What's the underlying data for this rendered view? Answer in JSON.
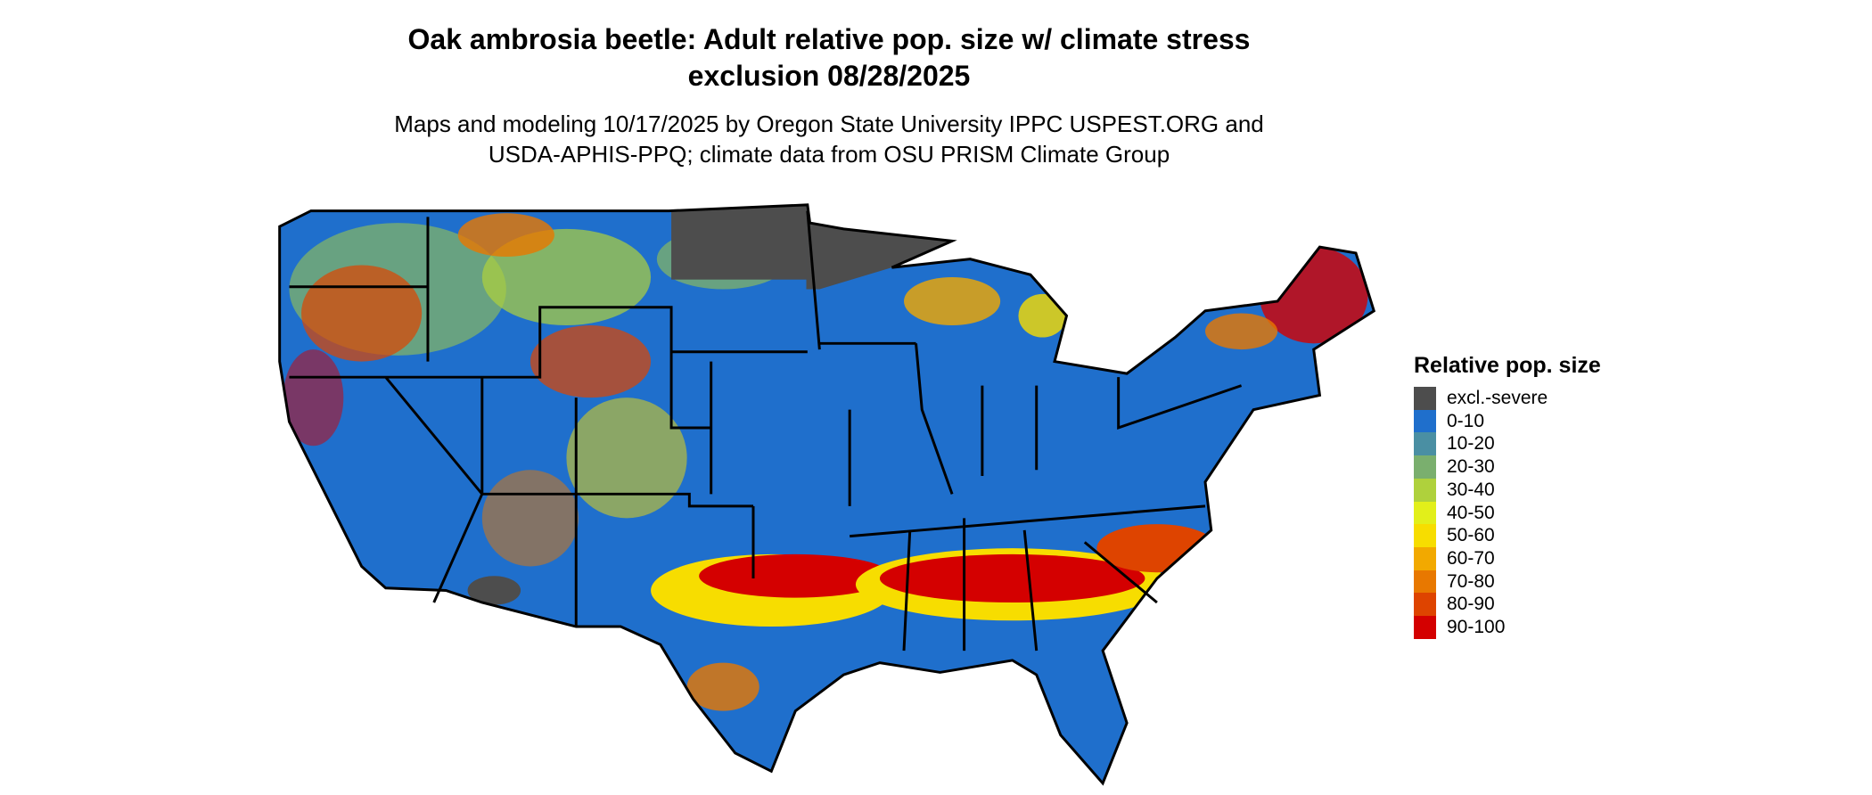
{
  "title": "Oak ambrosia beetle: Adult relative pop. size w/ climate stress exclusion 08/28/2025",
  "subtitle": "Maps and modeling 10/17/2025 by Oregon State University IPPC USPEST.ORG and USDA-APHIS-PPQ; climate data from OSU PRISM Climate Group",
  "legend": {
    "title": "Relative pop. size",
    "items": [
      {
        "label": "excl.-severe",
        "color": "#4d4d4d"
      },
      {
        "label": "0-10",
        "color": "#1f6fcc"
      },
      {
        "label": "10-20",
        "color": "#4a8fa3"
      },
      {
        "label": "20-30",
        "color": "#7aaf6e"
      },
      {
        "label": "30-40",
        "color": "#afd13c"
      },
      {
        "label": "40-50",
        "color": "#e2ef1a"
      },
      {
        "label": "50-60",
        "color": "#f7dd00"
      },
      {
        "label": "60-70",
        "color": "#f2a900"
      },
      {
        "label": "70-80",
        "color": "#e87800"
      },
      {
        "label": "80-90",
        "color": "#de4400"
      },
      {
        "label": "90-100",
        "color": "#d40000"
      }
    ]
  }
}
